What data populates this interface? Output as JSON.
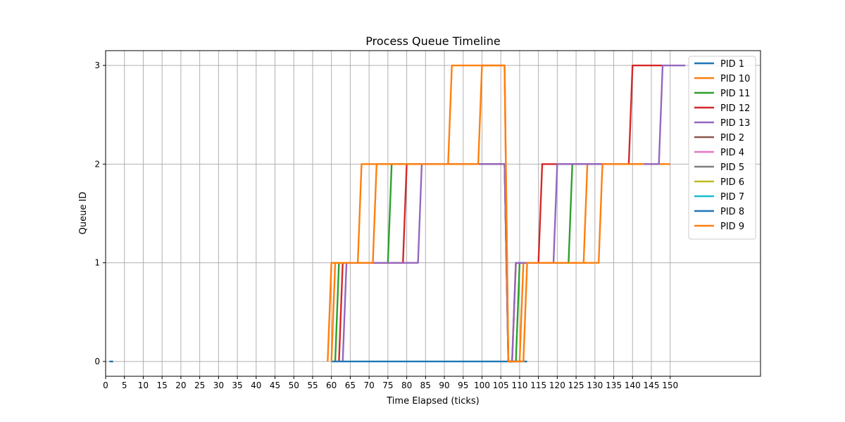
{
  "chart_data": {
    "type": "line",
    "title": "Process Queue Timeline",
    "xlabel": "Time Elapsed (ticks)",
    "ylabel": "Queue ID",
    "xlim": [
      0,
      174
    ],
    "ylim": [
      -0.15,
      3.15
    ],
    "x_ticks": [
      0,
      5,
      10,
      15,
      20,
      25,
      30,
      35,
      40,
      45,
      50,
      55,
      60,
      65,
      70,
      75,
      80,
      85,
      90,
      95,
      100,
      105,
      110,
      115,
      120,
      125,
      130,
      135,
      140,
      145,
      150
    ],
    "y_ticks": [
      0,
      1,
      2,
      3
    ],
    "grid": true,
    "legend_position": "top-right",
    "series": [
      {
        "name": "PID 1",
        "color": "#1f77b4",
        "points": [
          [
            1,
            0
          ],
          [
            2,
            0
          ]
        ]
      },
      {
        "name": "PID 10",
        "color": "#ff7f0e",
        "points": [
          [
            59,
            0
          ],
          [
            60,
            1
          ],
          [
            67,
            1
          ],
          [
            68,
            2
          ],
          [
            91,
            2
          ],
          [
            92,
            3
          ],
          [
            106,
            3
          ],
          [
            107,
            0
          ],
          [
            110,
            0
          ],
          [
            111,
            1
          ],
          [
            127,
            1
          ],
          [
            128,
            2
          ],
          [
            150,
            2
          ]
        ]
      },
      {
        "name": "PID 11",
        "color": "#2ca02c",
        "points": [
          [
            61,
            0
          ],
          [
            62,
            1
          ],
          [
            75,
            1
          ],
          [
            76,
            2
          ],
          [
            106,
            2
          ],
          [
            107,
            0
          ],
          [
            109,
            0
          ],
          [
            110,
            1
          ],
          [
            123,
            1
          ],
          [
            124,
            2
          ],
          [
            144,
            2
          ]
        ]
      },
      {
        "name": "PID 12",
        "color": "#d62728",
        "points": [
          [
            62,
            0
          ],
          [
            63,
            1
          ],
          [
            79,
            1
          ],
          [
            80,
            2
          ],
          [
            106,
            2
          ],
          [
            107,
            0
          ],
          [
            108,
            0
          ],
          [
            109,
            1
          ],
          [
            115,
            1
          ],
          [
            116,
            2
          ],
          [
            139,
            2
          ],
          [
            140,
            3
          ],
          [
            148,
            3
          ]
        ]
      },
      {
        "name": "PID 13",
        "color": "#9467bd",
        "points": [
          [
            63,
            0
          ],
          [
            64,
            1
          ],
          [
            83,
            1
          ],
          [
            84,
            2
          ],
          [
            106,
            2
          ],
          [
            107,
            0
          ],
          [
            108,
            0
          ],
          [
            109,
            1
          ],
          [
            119,
            1
          ],
          [
            120,
            2
          ],
          [
            147,
            2
          ],
          [
            148,
            3
          ],
          [
            154,
            3
          ]
        ]
      },
      {
        "name": "PID 2",
        "color": "#8c564b",
        "points": []
      },
      {
        "name": "PID 4",
        "color": "#e377c2",
        "points": []
      },
      {
        "name": "PID 5",
        "color": "#7f7f7f",
        "points": []
      },
      {
        "name": "PID 6",
        "color": "#bcbd22",
        "points": []
      },
      {
        "name": "PID 7",
        "color": "#17becf",
        "points": []
      },
      {
        "name": "PID 8",
        "color": "#1f77b4",
        "points": [
          [
            60,
            0
          ],
          [
            112,
            0
          ]
        ]
      },
      {
        "name": "PID 9",
        "color": "#ff7f0e",
        "points": [
          [
            60,
            0
          ],
          [
            61,
            1
          ],
          [
            71,
            1
          ],
          [
            72,
            2
          ],
          [
            99,
            2
          ],
          [
            100,
            3
          ],
          [
            106,
            3
          ],
          [
            107,
            0
          ],
          [
            111,
            0
          ],
          [
            112,
            1
          ],
          [
            131,
            1
          ],
          [
            132,
            2
          ],
          [
            143,
            2
          ]
        ]
      }
    ]
  }
}
